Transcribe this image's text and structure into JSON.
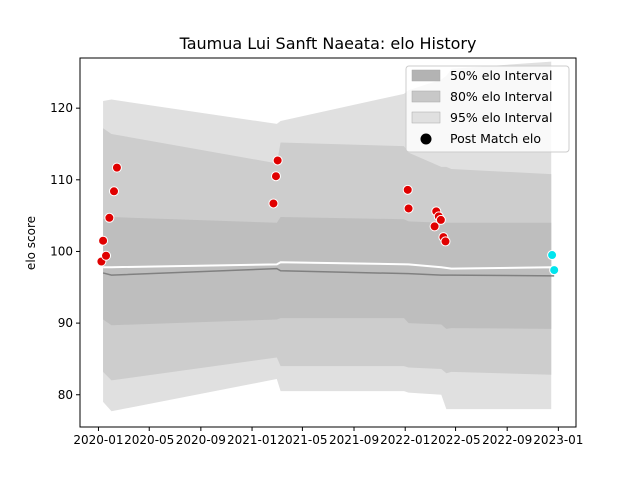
{
  "chart_data": {
    "type": "area",
    "title": "Taumua Lui Sanft Naeata: elo History",
    "xlabel": "",
    "ylabel": "elo score",
    "xlim": [
      "2019-11-18",
      "2023-02-12"
    ],
    "ylim": [
      75.5,
      127.0
    ],
    "x_ticks": [
      "2020-01",
      "2020-05",
      "2020-09",
      "2021-01",
      "2021-05",
      "2021-09",
      "2022-01",
      "2022-05",
      "2022-09",
      "2023-01"
    ],
    "y_ticks": [
      80,
      90,
      100,
      110,
      120
    ],
    "grid": false,
    "legend_position": "upper right",
    "legend": [
      {
        "label": "50% elo Interval",
        "kind": "patch",
        "color": "#b3b3b3"
      },
      {
        "label": "80% elo Interval",
        "kind": "patch",
        "color": "#c8c8c8"
      },
      {
        "label": "95% elo Interval",
        "kind": "patch",
        "color": "#e0e0e0"
      },
      {
        "label": "Post Match elo",
        "kind": "marker",
        "color": "#000000"
      }
    ],
    "bands": {
      "x": [
        "2020-01-12",
        "2020-02-01",
        "2021-03-01",
        "2021-03-10",
        "2021-12-29",
        "2022-01-09",
        "2022-03-28",
        "2022-04-09",
        "2022-04-21",
        "2022-12-15"
      ],
      "p95_upper": [
        121.0,
        121.2,
        117.8,
        118.2,
        122.0,
        122.5,
        124.0,
        124.5,
        125.5,
        126.5
      ],
      "p80_upper": [
        117.2,
        116.4,
        112.3,
        115.2,
        114.7,
        113.8,
        111.8,
        111.8,
        111.5,
        110.8
      ],
      "p50_upper": [
        104.5,
        104.8,
        104.0,
        104.8,
        104.5,
        104.2,
        104.0,
        104.0,
        104.0,
        104.0
      ],
      "p50_lower": [
        90.5,
        89.7,
        90.5,
        90.7,
        90.7,
        90.0,
        89.8,
        89.2,
        89.3,
        89.2
      ],
      "p80_lower": [
        83.2,
        82.0,
        85.2,
        84.0,
        84.0,
        83.8,
        83.6,
        83.0,
        83.2,
        82.8
      ],
      "p95_lower": [
        79.0,
        77.7,
        82.2,
        80.5,
        80.5,
        80.3,
        80.0,
        78.0,
        78.0,
        78.0
      ]
    },
    "expected_line": {
      "color": "#ffffff",
      "x": [
        "2020-01-12",
        "2020-02-01",
        "2021-03-01",
        "2021-03-10",
        "2022-01-09",
        "2022-03-28",
        "2022-04-21",
        "2022-12-15",
        "2022-12-22"
      ],
      "values": [
        97.8,
        97.8,
        98.2,
        98.5,
        98.2,
        97.8,
        97.6,
        97.8,
        97.6
      ]
    },
    "median_line": {
      "color": "#808080",
      "x": [
        "2020-01-12",
        "2020-02-01",
        "2021-03-01",
        "2021-03-10",
        "2022-01-09",
        "2022-03-28",
        "2022-04-21",
        "2022-12-22"
      ],
      "values": [
        97.0,
        96.7,
        97.6,
        97.3,
        96.9,
        96.7,
        96.7,
        96.6
      ]
    },
    "series": [
      {
        "name": "Post Match elo",
        "marker": "circle",
        "points": [
          {
            "x": "2020-01-08",
            "y": 98.6,
            "color": "#e00000"
          },
          {
            "x": "2020-01-12",
            "y": 101.5,
            "color": "#e00000"
          },
          {
            "x": "2020-01-19",
            "y": 99.4,
            "color": "#e00000"
          },
          {
            "x": "2020-01-27",
            "y": 104.7,
            "color": "#e00000"
          },
          {
            "x": "2020-02-07",
            "y": 108.4,
            "color": "#e00000"
          },
          {
            "x": "2020-02-14",
            "y": 111.7,
            "color": "#e00000"
          },
          {
            "x": "2021-02-21",
            "y": 106.7,
            "color": "#e00000"
          },
          {
            "x": "2021-02-27",
            "y": 110.5,
            "color": "#e00000"
          },
          {
            "x": "2021-03-03",
            "y": 112.7,
            "color": "#e00000"
          },
          {
            "x": "2022-01-07",
            "y": 108.6,
            "color": "#e00000"
          },
          {
            "x": "2022-01-09",
            "y": 106.0,
            "color": "#e00000"
          },
          {
            "x": "2022-03-12",
            "y": 103.5,
            "color": "#e00000"
          },
          {
            "x": "2022-03-16",
            "y": 105.6,
            "color": "#e00000"
          },
          {
            "x": "2022-03-22",
            "y": 104.9,
            "color": "#e00000"
          },
          {
            "x": "2022-03-27",
            "y": 104.4,
            "color": "#e00000"
          },
          {
            "x": "2022-04-02",
            "y": 102.0,
            "color": "#e00000"
          },
          {
            "x": "2022-04-07",
            "y": 101.4,
            "color": "#e00000"
          },
          {
            "x": "2022-12-17",
            "y": 99.5,
            "color": "#00e5ee"
          },
          {
            "x": "2022-12-22",
            "y": 97.4,
            "color": "#00e5ee"
          }
        ]
      }
    ]
  }
}
